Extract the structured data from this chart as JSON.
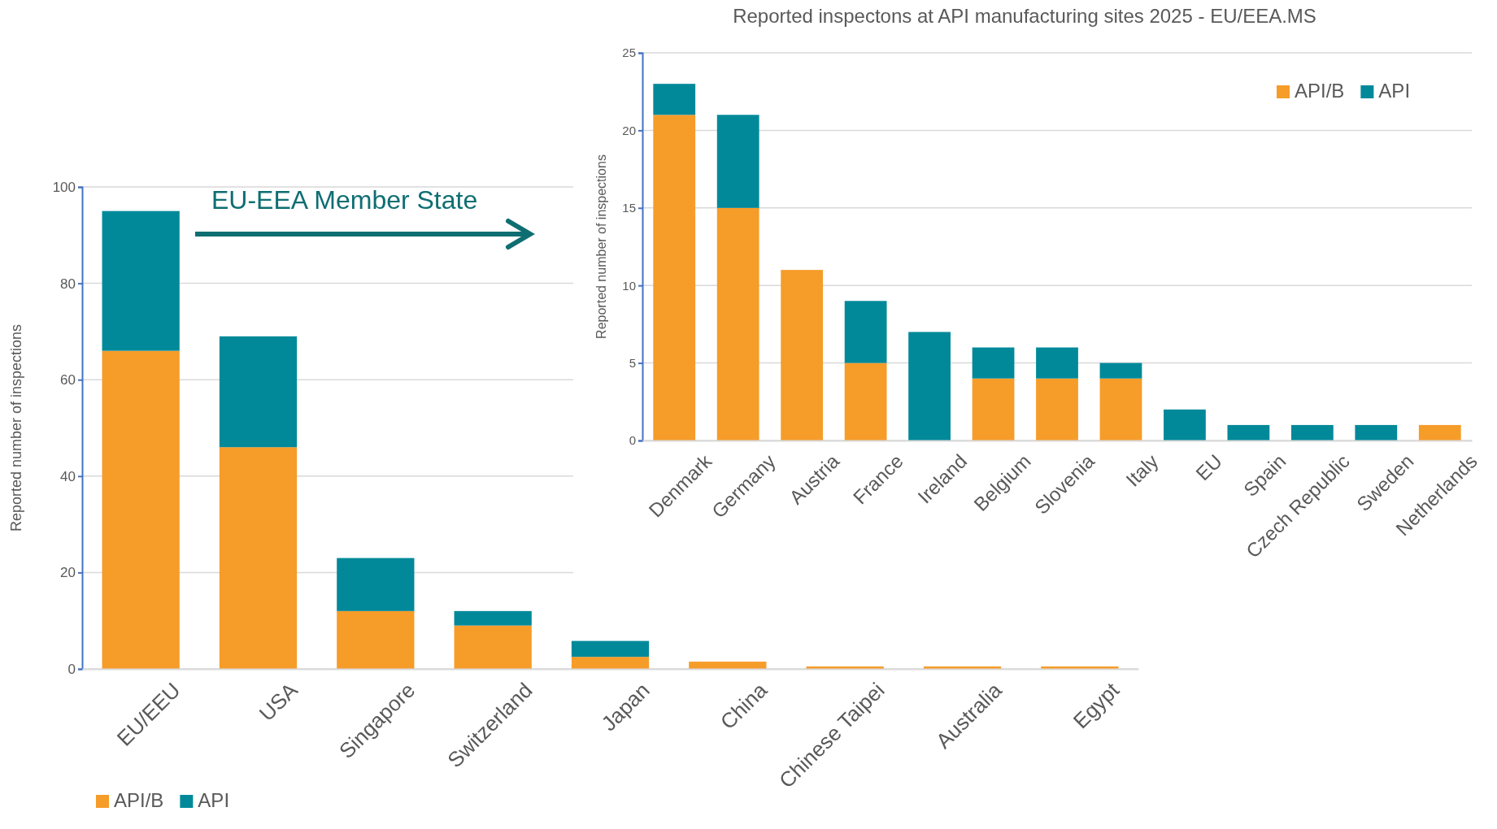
{
  "chart_data": [
    {
      "type": "bar",
      "stacked": true,
      "ylabel": "Reported number of inspections",
      "categories": [
        "EU/EEU",
        "USA",
        "Singapore",
        "Switzerland",
        "Japan",
        "China",
        "Chinese Taipei",
        "Australia",
        "Egypt"
      ],
      "series": [
        {
          "name": "API/B",
          "color": "#f69c29",
          "values": [
            66,
            46,
            12,
            9,
            2.5,
            1.5,
            0.5,
            0.5,
            0.5
          ]
        },
        {
          "name": "API",
          "color": "#01899a",
          "values": [
            29,
            23,
            11,
            3,
            3.3,
            0,
            0,
            0,
            0
          ]
        }
      ],
      "ylim": [
        0,
        100
      ],
      "yticks": [
        0,
        20,
        40,
        60,
        80,
        100
      ],
      "grid": "y",
      "legend": "bottom left",
      "annotations": [
        "EU-EEA Member State"
      ]
    },
    {
      "type": "bar",
      "stacked": true,
      "title": "Reported inspectons at API manufacturing sites 2025 - EU/EEA.MS",
      "ylabel": "Reported number of inspections",
      "categories": [
        "Denmark",
        "Germany",
        "Austria",
        "France",
        "Ireland",
        "Belgium",
        "Slovenia",
        "Italy",
        "EU",
        "Spain",
        "Czech Republic",
        "Sweden",
        "Netherlands"
      ],
      "series": [
        {
          "name": "API/B",
          "color": "#f69c29",
          "values": [
            21,
            15,
            11,
            5,
            0,
            4,
            4,
            4,
            0,
            0,
            0,
            0,
            1
          ]
        },
        {
          "name": "API",
          "color": "#01899a",
          "values": [
            2,
            6,
            0,
            4,
            7,
            2,
            2,
            1,
            2,
            1,
            1,
            1,
            0
          ]
        }
      ],
      "ylim": [
        0,
        25
      ],
      "yticks": [
        0,
        5,
        10,
        15,
        20,
        25
      ],
      "grid": "y",
      "legend": "top right"
    }
  ]
}
